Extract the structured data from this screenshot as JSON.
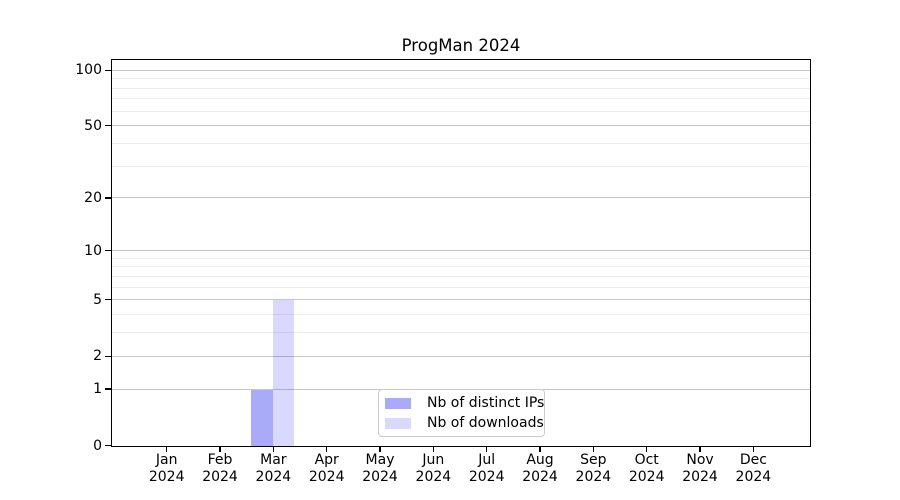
{
  "chart_data": {
    "type": "bar",
    "title": "ProgMan 2024",
    "x_axis": {
      "months": [
        "Jan",
        "Feb",
        "Mar",
        "Apr",
        "May",
        "Jun",
        "Jul",
        "Aug",
        "Sep",
        "Oct",
        "Nov",
        "Dec"
      ],
      "year": "2024"
    },
    "series": [
      {
        "name": "Nb of distinct IPs",
        "color": "rgba(10,10,240,0.345)",
        "values": [
          0,
          0,
          1,
          0,
          0,
          0,
          0,
          0,
          0,
          0,
          0,
          0
        ]
      },
      {
        "name": "Nb of downloads",
        "color": "rgba(10,10,240,0.155)",
        "values": [
          0,
          0,
          5,
          0,
          0,
          0,
          0,
          0,
          0,
          0,
          0,
          0
        ]
      }
    ],
    "y_axis": {
      "scale": "log10(1+value)",
      "major_ticks": [
        0,
        1,
        2,
        5,
        10,
        20,
        50,
        100
      ],
      "minor_gridlines": [
        3,
        4,
        6,
        7,
        8,
        9,
        30,
        40,
        60,
        70,
        80,
        90
      ],
      "ylim": [
        0,
        115
      ]
    },
    "legend": {
      "position": "lower center"
    },
    "grid": true,
    "colors": {
      "major_grid": "#c6c6c6",
      "minor_grid": "#ececec",
      "spine": "#000000"
    }
  }
}
